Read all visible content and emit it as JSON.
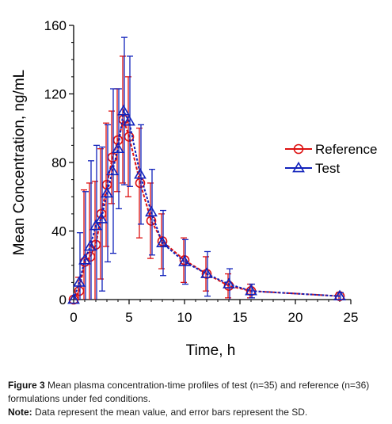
{
  "chart_data": {
    "type": "line",
    "xlabel": "Time, h",
    "ylabel": "Mean Concentration, ng/mL",
    "xlim": [
      0,
      25
    ],
    "ylim": [
      0,
      160
    ],
    "x_ticks": [
      0,
      5,
      10,
      15,
      20,
      25
    ],
    "y_ticks": [
      0,
      40,
      80,
      120,
      160
    ],
    "grid": false,
    "legend_position": "center-right",
    "series": [
      {
        "name": "Reference",
        "color": "#dd1111",
        "marker": "circle",
        "x": [
          0,
          0.5,
          1,
          1.5,
          2,
          2.5,
          3,
          3.5,
          4,
          4.5,
          5,
          6,
          7,
          8,
          10,
          12,
          14,
          16,
          24
        ],
        "y": [
          0,
          5,
          22,
          25,
          32,
          50,
          67,
          83,
          93,
          105,
          95,
          68,
          46,
          34,
          23,
          15,
          8,
          5,
          2
        ],
        "sd": [
          0,
          8,
          42,
          43,
          37,
          38,
          36,
          27,
          30,
          37,
          35,
          32,
          22,
          16,
          13,
          10,
          7,
          4,
          2
        ]
      },
      {
        "name": "Test",
        "color": "#1122bb",
        "marker": "triangle",
        "x": [
          0,
          0.5,
          1,
          1.5,
          2,
          2.5,
          3,
          3.5,
          4,
          4.5,
          5,
          6,
          7,
          8,
          10,
          12,
          14,
          16,
          24
        ],
        "y": [
          0,
          10,
          23,
          31,
          43,
          47,
          62,
          75,
          88,
          110,
          104,
          73,
          51,
          33,
          22,
          15,
          9,
          5,
          2
        ],
        "sd": [
          0,
          29,
          40,
          50,
          47,
          42,
          40,
          48,
          35,
          43,
          38,
          29,
          25,
          19,
          13,
          13,
          9,
          4,
          2
        ]
      }
    ]
  },
  "caption": {
    "figure_label": "Figure 3",
    "figure_text": "Mean plasma concentration-time profiles of test (n=35) and reference (n=36) formulations under fed conditions.",
    "note_label": "Note:",
    "note_text": "Data represent the mean value, and error bars represent the SD."
  }
}
